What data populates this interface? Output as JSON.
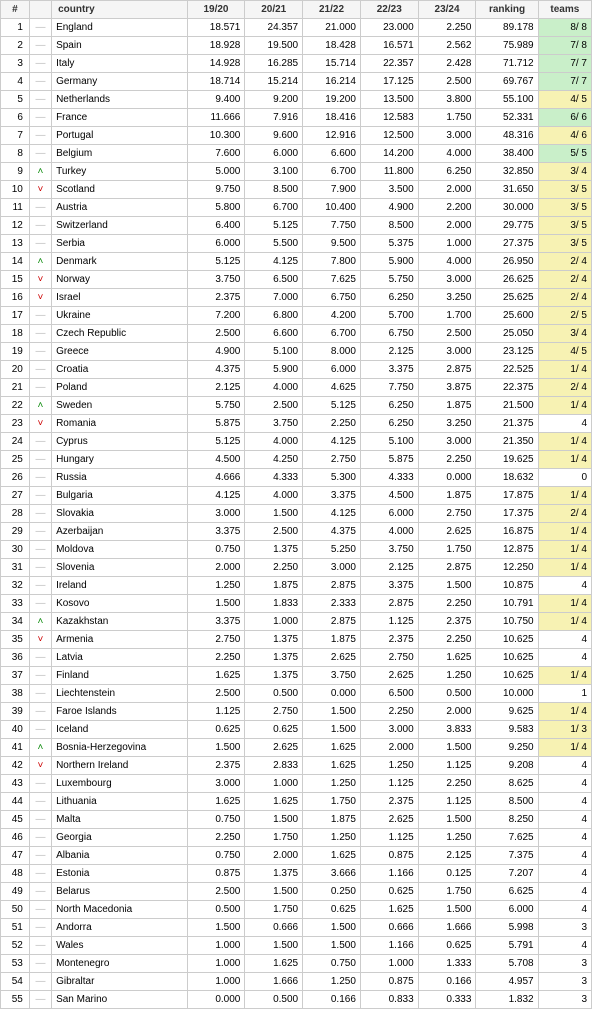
{
  "colors": {
    "header_bg": "#f5f5f5",
    "border": "#cccccc",
    "text": "#222222",
    "hl_green": "#c9efc9",
    "hl_yellow": "#f7f2b3",
    "trend_same": "#bbbbbb",
    "trend_up": "#0a8a0a",
    "trend_down": "#c00000",
    "background": "#ffffff"
  },
  "font": {
    "family": "Verdana",
    "size_pt": 10
  },
  "trend_glyphs": {
    "same": "—",
    "up": "˄",
    "down": "˅"
  },
  "columns": [
    {
      "key": "rank",
      "label": "#",
      "class": "rank"
    },
    {
      "key": "trend",
      "label": "",
      "class": "trend"
    },
    {
      "key": "country",
      "label": "country",
      "class": "country",
      "align": "left"
    },
    {
      "key": "s1",
      "label": "19/20",
      "class": "num"
    },
    {
      "key": "s2",
      "label": "20/21",
      "class": "num"
    },
    {
      "key": "s3",
      "label": "21/22",
      "class": "num"
    },
    {
      "key": "s4",
      "label": "22/23",
      "class": "num"
    },
    {
      "key": "s5",
      "label": "23/24",
      "class": "num"
    },
    {
      "key": "ranking",
      "label": "ranking",
      "class": "num"
    },
    {
      "key": "teams",
      "label": "teams",
      "class": "teams"
    }
  ],
  "rows": [
    {
      "rank": 1,
      "trend": "same",
      "country": "England",
      "s1": "18.571",
      "s2": "24.357",
      "s3": "21.000",
      "s4": "23.000",
      "s5": "2.250",
      "ranking": "89.178",
      "teams": "8/ 8",
      "teams_hl": "green"
    },
    {
      "rank": 2,
      "trend": "same",
      "country": "Spain",
      "s1": "18.928",
      "s2": "19.500",
      "s3": "18.428",
      "s4": "16.571",
      "s5": "2.562",
      "ranking": "75.989",
      "teams": "7/ 8",
      "teams_hl": "green"
    },
    {
      "rank": 3,
      "trend": "same",
      "country": "Italy",
      "s1": "14.928",
      "s2": "16.285",
      "s3": "15.714",
      "s4": "22.357",
      "s5": "2.428",
      "ranking": "71.712",
      "teams": "7/ 7",
      "teams_hl": "green"
    },
    {
      "rank": 4,
      "trend": "same",
      "country": "Germany",
      "s1": "18.714",
      "s2": "15.214",
      "s3": "16.214",
      "s4": "17.125",
      "s5": "2.500",
      "ranking": "69.767",
      "teams": "7/ 7",
      "teams_hl": "green"
    },
    {
      "rank": 5,
      "trend": "same",
      "country": "Netherlands",
      "s1": "9.400",
      "s2": "9.200",
      "s3": "19.200",
      "s4": "13.500",
      "s5": "3.800",
      "ranking": "55.100",
      "teams": "4/ 5",
      "teams_hl": "yellow"
    },
    {
      "rank": 6,
      "trend": "same",
      "country": "France",
      "s1": "11.666",
      "s2": "7.916",
      "s3": "18.416",
      "s4": "12.583",
      "s5": "1.750",
      "ranking": "52.331",
      "teams": "6/ 6",
      "teams_hl": "green"
    },
    {
      "rank": 7,
      "trend": "same",
      "country": "Portugal",
      "s1": "10.300",
      "s2": "9.600",
      "s3": "12.916",
      "s4": "12.500",
      "s5": "3.000",
      "ranking": "48.316",
      "teams": "4/ 6",
      "teams_hl": "yellow"
    },
    {
      "rank": 8,
      "trend": "same",
      "country": "Belgium",
      "s1": "7.600",
      "s2": "6.000",
      "s3": "6.600",
      "s4": "14.200",
      "s5": "4.000",
      "ranking": "38.400",
      "teams": "5/ 5",
      "teams_hl": "green"
    },
    {
      "rank": 9,
      "trend": "up",
      "country": "Turkey",
      "s1": "5.000",
      "s2": "3.100",
      "s3": "6.700",
      "s4": "11.800",
      "s5": "6.250",
      "ranking": "32.850",
      "teams": "3/ 4",
      "teams_hl": "yellow"
    },
    {
      "rank": 10,
      "trend": "down",
      "country": "Scotland",
      "s1": "9.750",
      "s2": "8.500",
      "s3": "7.900",
      "s4": "3.500",
      "s5": "2.000",
      "ranking": "31.650",
      "teams": "3/ 5",
      "teams_hl": "yellow"
    },
    {
      "rank": 11,
      "trend": "same",
      "country": "Austria",
      "s1": "5.800",
      "s2": "6.700",
      "s3": "10.400",
      "s4": "4.900",
      "s5": "2.200",
      "ranking": "30.000",
      "teams": "3/ 5",
      "teams_hl": "yellow"
    },
    {
      "rank": 12,
      "trend": "same",
      "country": "Switzerland",
      "s1": "6.400",
      "s2": "5.125",
      "s3": "7.750",
      "s4": "8.500",
      "s5": "2.000",
      "ranking": "29.775",
      "teams": "3/ 5",
      "teams_hl": "yellow"
    },
    {
      "rank": 13,
      "trend": "same",
      "country": "Serbia",
      "s1": "6.000",
      "s2": "5.500",
      "s3": "9.500",
      "s4": "5.375",
      "s5": "1.000",
      "ranking": "27.375",
      "teams": "3/ 5",
      "teams_hl": "yellow"
    },
    {
      "rank": 14,
      "trend": "up",
      "country": "Denmark",
      "s1": "5.125",
      "s2": "4.125",
      "s3": "7.800",
      "s4": "5.900",
      "s5": "4.000",
      "ranking": "26.950",
      "teams": "2/ 4",
      "teams_hl": "yellow"
    },
    {
      "rank": 15,
      "trend": "down",
      "country": "Norway",
      "s1": "3.750",
      "s2": "6.500",
      "s3": "7.625",
      "s4": "5.750",
      "s5": "3.000",
      "ranking": "26.625",
      "teams": "2/ 4",
      "teams_hl": "yellow"
    },
    {
      "rank": 16,
      "trend": "down",
      "country": "Israel",
      "s1": "2.375",
      "s2": "7.000",
      "s3": "6.750",
      "s4": "6.250",
      "s5": "3.250",
      "ranking": "25.625",
      "teams": "2/ 4",
      "teams_hl": "yellow"
    },
    {
      "rank": 17,
      "trend": "same",
      "country": "Ukraine",
      "s1": "7.200",
      "s2": "6.800",
      "s3": "4.200",
      "s4": "5.700",
      "s5": "1.700",
      "ranking": "25.600",
      "teams": "2/ 5",
      "teams_hl": "yellow"
    },
    {
      "rank": 18,
      "trend": "same",
      "country": "Czech Republic",
      "s1": "2.500",
      "s2": "6.600",
      "s3": "6.700",
      "s4": "6.750",
      "s5": "2.500",
      "ranking": "25.050",
      "teams": "3/ 4",
      "teams_hl": "yellow"
    },
    {
      "rank": 19,
      "trend": "same",
      "country": "Greece",
      "s1": "4.900",
      "s2": "5.100",
      "s3": "8.000",
      "s4": "2.125",
      "s5": "3.000",
      "ranking": "23.125",
      "teams": "4/ 5",
      "teams_hl": "yellow"
    },
    {
      "rank": 20,
      "trend": "same",
      "country": "Croatia",
      "s1": "4.375",
      "s2": "5.900",
      "s3": "6.000",
      "s4": "3.375",
      "s5": "2.875",
      "ranking": "22.525",
      "teams": "1/ 4",
      "teams_hl": "yellow"
    },
    {
      "rank": 21,
      "trend": "same",
      "country": "Poland",
      "s1": "2.125",
      "s2": "4.000",
      "s3": "4.625",
      "s4": "7.750",
      "s5": "3.875",
      "ranking": "22.375",
      "teams": "2/ 4",
      "teams_hl": "yellow"
    },
    {
      "rank": 22,
      "trend": "up",
      "country": "Sweden",
      "s1": "5.750",
      "s2": "2.500",
      "s3": "5.125",
      "s4": "6.250",
      "s5": "1.875",
      "ranking": "21.500",
      "teams": "1/ 4",
      "teams_hl": "yellow"
    },
    {
      "rank": 23,
      "trend": "down",
      "country": "Romania",
      "s1": "5.875",
      "s2": "3.750",
      "s3": "2.250",
      "s4": "6.250",
      "s5": "3.250",
      "ranking": "21.375",
      "teams": "4",
      "teams_hl": ""
    },
    {
      "rank": 24,
      "trend": "same",
      "country": "Cyprus",
      "s1": "5.125",
      "s2": "4.000",
      "s3": "4.125",
      "s4": "5.100",
      "s5": "3.000",
      "ranking": "21.350",
      "teams": "1/ 4",
      "teams_hl": "yellow"
    },
    {
      "rank": 25,
      "trend": "same",
      "country": "Hungary",
      "s1": "4.500",
      "s2": "4.250",
      "s3": "2.750",
      "s4": "5.875",
      "s5": "2.250",
      "ranking": "19.625",
      "teams": "1/ 4",
      "teams_hl": "yellow"
    },
    {
      "rank": 26,
      "trend": "same",
      "country": "Russia",
      "s1": "4.666",
      "s2": "4.333",
      "s3": "5.300",
      "s4": "4.333",
      "s5": "0.000",
      "ranking": "18.632",
      "teams": "0",
      "teams_hl": ""
    },
    {
      "rank": 27,
      "trend": "same",
      "country": "Bulgaria",
      "s1": "4.125",
      "s2": "4.000",
      "s3": "3.375",
      "s4": "4.500",
      "s5": "1.875",
      "ranking": "17.875",
      "teams": "1/ 4",
      "teams_hl": "yellow"
    },
    {
      "rank": 28,
      "trend": "same",
      "country": "Slovakia",
      "s1": "3.000",
      "s2": "1.500",
      "s3": "4.125",
      "s4": "6.000",
      "s5": "2.750",
      "ranking": "17.375",
      "teams": "2/ 4",
      "teams_hl": "yellow"
    },
    {
      "rank": 29,
      "trend": "same",
      "country": "Azerbaijan",
      "s1": "3.375",
      "s2": "2.500",
      "s3": "4.375",
      "s4": "4.000",
      "s5": "2.625",
      "ranking": "16.875",
      "teams": "1/ 4",
      "teams_hl": "yellow"
    },
    {
      "rank": 30,
      "trend": "same",
      "country": "Moldova",
      "s1": "0.750",
      "s2": "1.375",
      "s3": "5.250",
      "s4": "3.750",
      "s5": "1.750",
      "ranking": "12.875",
      "teams": "1/ 4",
      "teams_hl": "yellow"
    },
    {
      "rank": 31,
      "trend": "same",
      "country": "Slovenia",
      "s1": "2.000",
      "s2": "2.250",
      "s3": "3.000",
      "s4": "2.125",
      "s5": "2.875",
      "ranking": "12.250",
      "teams": "1/ 4",
      "teams_hl": "yellow"
    },
    {
      "rank": 32,
      "trend": "same",
      "country": "Ireland",
      "s1": "1.250",
      "s2": "1.875",
      "s3": "2.875",
      "s4": "3.375",
      "s5": "1.500",
      "ranking": "10.875",
      "teams": "4",
      "teams_hl": ""
    },
    {
      "rank": 33,
      "trend": "same",
      "country": "Kosovo",
      "s1": "1.500",
      "s2": "1.833",
      "s3": "2.333",
      "s4": "2.875",
      "s5": "2.250",
      "ranking": "10.791",
      "teams": "1/ 4",
      "teams_hl": "yellow"
    },
    {
      "rank": 34,
      "trend": "up",
      "country": "Kazakhstan",
      "s1": "3.375",
      "s2": "1.000",
      "s3": "2.875",
      "s4": "1.125",
      "s5": "2.375",
      "ranking": "10.750",
      "teams": "1/ 4",
      "teams_hl": "yellow"
    },
    {
      "rank": 35,
      "trend": "down",
      "country": "Armenia",
      "s1": "2.750",
      "s2": "1.375",
      "s3": "1.875",
      "s4": "2.375",
      "s5": "2.250",
      "ranking": "10.625",
      "teams": "4",
      "teams_hl": ""
    },
    {
      "rank": 36,
      "trend": "same",
      "country": "Latvia",
      "s1": "2.250",
      "s2": "1.375",
      "s3": "2.625",
      "s4": "2.750",
      "s5": "1.625",
      "ranking": "10.625",
      "teams": "4",
      "teams_hl": ""
    },
    {
      "rank": 37,
      "trend": "same",
      "country": "Finland",
      "s1": "1.625",
      "s2": "1.375",
      "s3": "3.750",
      "s4": "2.625",
      "s5": "1.250",
      "ranking": "10.625",
      "teams": "1/ 4",
      "teams_hl": "yellow"
    },
    {
      "rank": 38,
      "trend": "same",
      "country": "Liechtenstein",
      "s1": "2.500",
      "s2": "0.500",
      "s3": "0.000",
      "s4": "6.500",
      "s5": "0.500",
      "ranking": "10.000",
      "teams": "1",
      "teams_hl": ""
    },
    {
      "rank": 39,
      "trend": "same",
      "country": "Faroe Islands",
      "s1": "1.125",
      "s2": "2.750",
      "s3": "1.500",
      "s4": "2.250",
      "s5": "2.000",
      "ranking": "9.625",
      "teams": "1/ 4",
      "teams_hl": "yellow"
    },
    {
      "rank": 40,
      "trend": "same",
      "country": "Iceland",
      "s1": "0.625",
      "s2": "0.625",
      "s3": "1.500",
      "s4": "3.000",
      "s5": "3.833",
      "ranking": "9.583",
      "teams": "1/ 3",
      "teams_hl": "yellow"
    },
    {
      "rank": 41,
      "trend": "up",
      "country": "Bosnia-Herzegovina",
      "s1": "1.500",
      "s2": "2.625",
      "s3": "1.625",
      "s4": "2.000",
      "s5": "1.500",
      "ranking": "9.250",
      "teams": "1/ 4",
      "teams_hl": "yellow"
    },
    {
      "rank": 42,
      "trend": "down",
      "country": "Northern Ireland",
      "s1": "2.375",
      "s2": "2.833",
      "s3": "1.625",
      "s4": "1.250",
      "s5": "1.125",
      "ranking": "9.208",
      "teams": "4",
      "teams_hl": ""
    },
    {
      "rank": 43,
      "trend": "same",
      "country": "Luxembourg",
      "s1": "3.000",
      "s2": "1.000",
      "s3": "1.250",
      "s4": "1.125",
      "s5": "2.250",
      "ranking": "8.625",
      "teams": "4",
      "teams_hl": ""
    },
    {
      "rank": 44,
      "trend": "same",
      "country": "Lithuania",
      "s1": "1.625",
      "s2": "1.625",
      "s3": "1.750",
      "s4": "2.375",
      "s5": "1.125",
      "ranking": "8.500",
      "teams": "4",
      "teams_hl": ""
    },
    {
      "rank": 45,
      "trend": "same",
      "country": "Malta",
      "s1": "0.750",
      "s2": "1.500",
      "s3": "1.875",
      "s4": "2.625",
      "s5": "1.500",
      "ranking": "8.250",
      "teams": "4",
      "teams_hl": ""
    },
    {
      "rank": 46,
      "trend": "same",
      "country": "Georgia",
      "s1": "2.250",
      "s2": "1.750",
      "s3": "1.250",
      "s4": "1.125",
      "s5": "1.250",
      "ranking": "7.625",
      "teams": "4",
      "teams_hl": ""
    },
    {
      "rank": 47,
      "trend": "same",
      "country": "Albania",
      "s1": "0.750",
      "s2": "2.000",
      "s3": "1.625",
      "s4": "0.875",
      "s5": "2.125",
      "ranking": "7.375",
      "teams": "4",
      "teams_hl": ""
    },
    {
      "rank": 48,
      "trend": "same",
      "country": "Estonia",
      "s1": "0.875",
      "s2": "1.375",
      "s3": "3.666",
      "s4": "1.166",
      "s5": "0.125",
      "ranking": "7.207",
      "teams": "4",
      "teams_hl": ""
    },
    {
      "rank": 49,
      "trend": "same",
      "country": "Belarus",
      "s1": "2.500",
      "s2": "1.500",
      "s3": "0.250",
      "s4": "0.625",
      "s5": "1.750",
      "ranking": "6.625",
      "teams": "4",
      "teams_hl": ""
    },
    {
      "rank": 50,
      "trend": "same",
      "country": "North Macedonia",
      "s1": "0.500",
      "s2": "1.750",
      "s3": "0.625",
      "s4": "1.625",
      "s5": "1.500",
      "ranking": "6.000",
      "teams": "4",
      "teams_hl": ""
    },
    {
      "rank": 51,
      "trend": "same",
      "country": "Andorra",
      "s1": "1.500",
      "s2": "0.666",
      "s3": "1.500",
      "s4": "0.666",
      "s5": "1.666",
      "ranking": "5.998",
      "teams": "3",
      "teams_hl": ""
    },
    {
      "rank": 52,
      "trend": "same",
      "country": "Wales",
      "s1": "1.000",
      "s2": "1.500",
      "s3": "1.500",
      "s4": "1.166",
      "s5": "0.625",
      "ranking": "5.791",
      "teams": "4",
      "teams_hl": ""
    },
    {
      "rank": 53,
      "trend": "same",
      "country": "Montenegro",
      "s1": "1.000",
      "s2": "1.625",
      "s3": "0.750",
      "s4": "1.000",
      "s5": "1.333",
      "ranking": "5.708",
      "teams": "3",
      "teams_hl": ""
    },
    {
      "rank": 54,
      "trend": "same",
      "country": "Gibraltar",
      "s1": "1.000",
      "s2": "1.666",
      "s3": "1.250",
      "s4": "0.875",
      "s5": "0.166",
      "ranking": "4.957",
      "teams": "3",
      "teams_hl": ""
    },
    {
      "rank": 55,
      "trend": "same",
      "country": "San Marino",
      "s1": "0.000",
      "s2": "0.500",
      "s3": "0.166",
      "s4": "0.833",
      "s5": "0.333",
      "ranking": "1.832",
      "teams": "3",
      "teams_hl": ""
    }
  ]
}
